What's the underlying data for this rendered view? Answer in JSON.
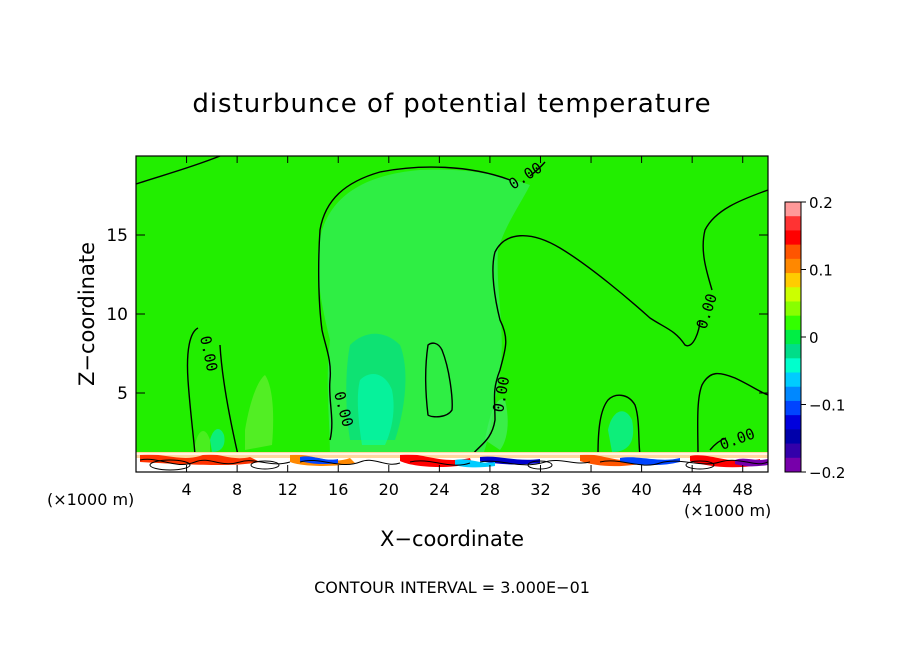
{
  "chart_data": {
    "type": "contour",
    "title": "disturbunce of potential temperature",
    "xlabel": "X−coordinate",
    "ylabel": "Z−coordinate",
    "x_unit_left": "(×1000 m)",
    "x_unit_right": "(×1000 m)",
    "xlim": [
      0,
      50
    ],
    "ylim": [
      0,
      20
    ],
    "x_ticks": [
      4,
      8,
      12,
      16,
      20,
      24,
      28,
      32,
      36,
      40,
      44,
      48
    ],
    "y_ticks": [
      5,
      10,
      15
    ],
    "contour_interval_text": "CONTOUR INTERVAL = 3.000E−01",
    "contour_label": "0.00",
    "colorbar": {
      "min": -0.2,
      "max": 0.2,
      "tick_values": [
        0.2,
        0.1,
        0,
        -0.1,
        -0.2
      ],
      "tick_labels": [
        "0.2",
        "0.1",
        "0",
        "−0.1",
        "−0.2"
      ],
      "colors": [
        "#ff9999",
        "#ff3333",
        "#ff0000",
        "#ff5500",
        "#ff8800",
        "#ffcc00",
        "#ccff00",
        "#88ff00",
        "#33ff00",
        "#00ee44",
        "#00dd88",
        "#00ffcc",
        "#00ccff",
        "#0088ff",
        "#0044ff",
        "#0000dd",
        "#0000aa",
        "#3300aa",
        "#7700aa"
      ]
    },
    "background_value": 0.0,
    "background_color": "#22dd22"
  }
}
